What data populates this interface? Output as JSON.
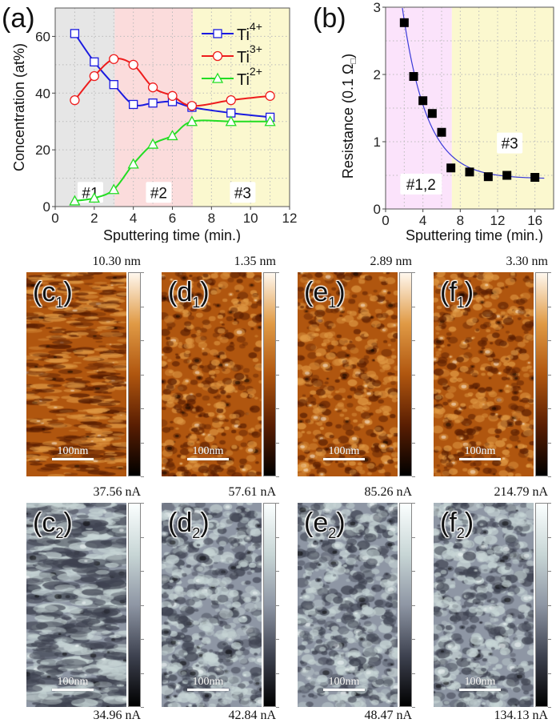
{
  "chart_data": [
    {
      "type": "line",
      "panel_label": "(a)",
      "xlabel": "Sputtering time  (min.)",
      "ylabel": "Concentration  (at%)",
      "xlim": [
        0,
        12
      ],
      "ylim": [
        0,
        70
      ],
      "xticks": [
        0,
        2,
        4,
        6,
        8,
        10,
        12
      ],
      "yticks": [
        0,
        20,
        40,
        60
      ],
      "grid": true,
      "legend": "top-right",
      "regions": [
        {
          "label": "#1",
          "x": [
            0,
            3.05
          ],
          "color": "#e6e6e6"
        },
        {
          "label": "#2",
          "x": [
            3.05,
            7.05
          ],
          "color": "#fbdcdc"
        },
        {
          "label": "#3",
          "x": [
            7.05,
            12
          ],
          "color": "#fbf8cf"
        }
      ],
      "x": [
        1,
        2,
        3,
        4,
        5,
        6,
        7,
        9,
        11
      ],
      "series": [
        {
          "name": "Ti",
          "sup": "4+",
          "color": "#1a1ae0",
          "marker": "square",
          "values": [
            61,
            51,
            43,
            36,
            36.5,
            37,
            35,
            33,
            31.5
          ]
        },
        {
          "name": "Ti",
          "sup": "3+",
          "color": "#ee1c1c",
          "marker": "circle",
          "values": [
            37.5,
            46,
            52,
            50,
            42,
            39,
            35.5,
            37.5,
            39
          ]
        },
        {
          "name": "Ti",
          "sup": "2+",
          "color": "#22dd22",
          "marker": "triangle",
          "values": [
            2,
            3,
            6,
            15,
            22,
            25,
            30,
            30,
            30
          ]
        }
      ]
    },
    {
      "type": "scatter",
      "panel_label": "(b)",
      "xlabel": "Sputtering time  (min.)",
      "ylabel": "Resistance  (0.1 Ω",
      "ylabel_unit_symbol": "□",
      "xlim": [
        0,
        18
      ],
      "ylim": [
        0,
        3
      ],
      "xticks": [
        0,
        4,
        8,
        12,
        16
      ],
      "yticks": [
        0,
        1,
        2,
        3
      ],
      "grid": true,
      "regions": [
        {
          "label": "#1,2",
          "x": [
            0,
            7.1
          ],
          "color": "#fbe3fb"
        },
        {
          "label": "#3",
          "x": [
            7.1,
            18
          ],
          "color": "#fbf8cf"
        }
      ],
      "x": [
        2,
        3,
        4,
        5,
        6,
        7,
        9,
        11,
        13,
        16
      ],
      "values": [
        2.77,
        1.97,
        1.61,
        1.42,
        1.14,
        0.61,
        0.55,
        0.48,
        0.5,
        0.47
      ],
      "marker_color": "#000000",
      "fit": {
        "type": "exponential-decay",
        "color": "#3a3ad8",
        "y0": 0.45,
        "A": 5.03,
        "t": 2.63,
        "x_range": [
          1.8,
          17
        ]
      }
    }
  ],
  "images": [
    {
      "label": "c",
      "sub": "1",
      "type": "topography",
      "max": "10.30 nm",
      "scalebar": "100nm"
    },
    {
      "label": "d",
      "sub": "1",
      "type": "topography",
      "max": "1.35 nm",
      "scalebar": "100nm"
    },
    {
      "label": "e",
      "sub": "1",
      "type": "topography",
      "max": "2.89 nm",
      "scalebar": "100nm"
    },
    {
      "label": "f",
      "sub": "1",
      "type": "topography",
      "max": "3.30 nm",
      "scalebar": "100nm"
    },
    {
      "label": "c",
      "sub": "2",
      "type": "current",
      "max": "37.56 nA",
      "min": "34.96 nA",
      "scalebar": "100nm"
    },
    {
      "label": "d",
      "sub": "2",
      "type": "current",
      "max": "57.61 nA",
      "min": "42.84 nA",
      "scalebar": "100nm"
    },
    {
      "label": "e",
      "sub": "2",
      "type": "current",
      "max": "85.26 nA",
      "min": "48.47 nA",
      "scalebar": "100nm"
    },
    {
      "label": "f",
      "sub": "2",
      "type": "current",
      "max": "214.79 nA",
      "min": "134.13 nA",
      "scalebar": "100nm"
    }
  ],
  "colormaps": {
    "topography": [
      "#000000",
      "#5a1e02",
      "#b0560f",
      "#e09a45",
      "#fff8ee"
    ],
    "current": [
      "#000000",
      "#3e4250",
      "#8e96a4",
      "#c8d6d6",
      "#fbffff"
    ]
  }
}
